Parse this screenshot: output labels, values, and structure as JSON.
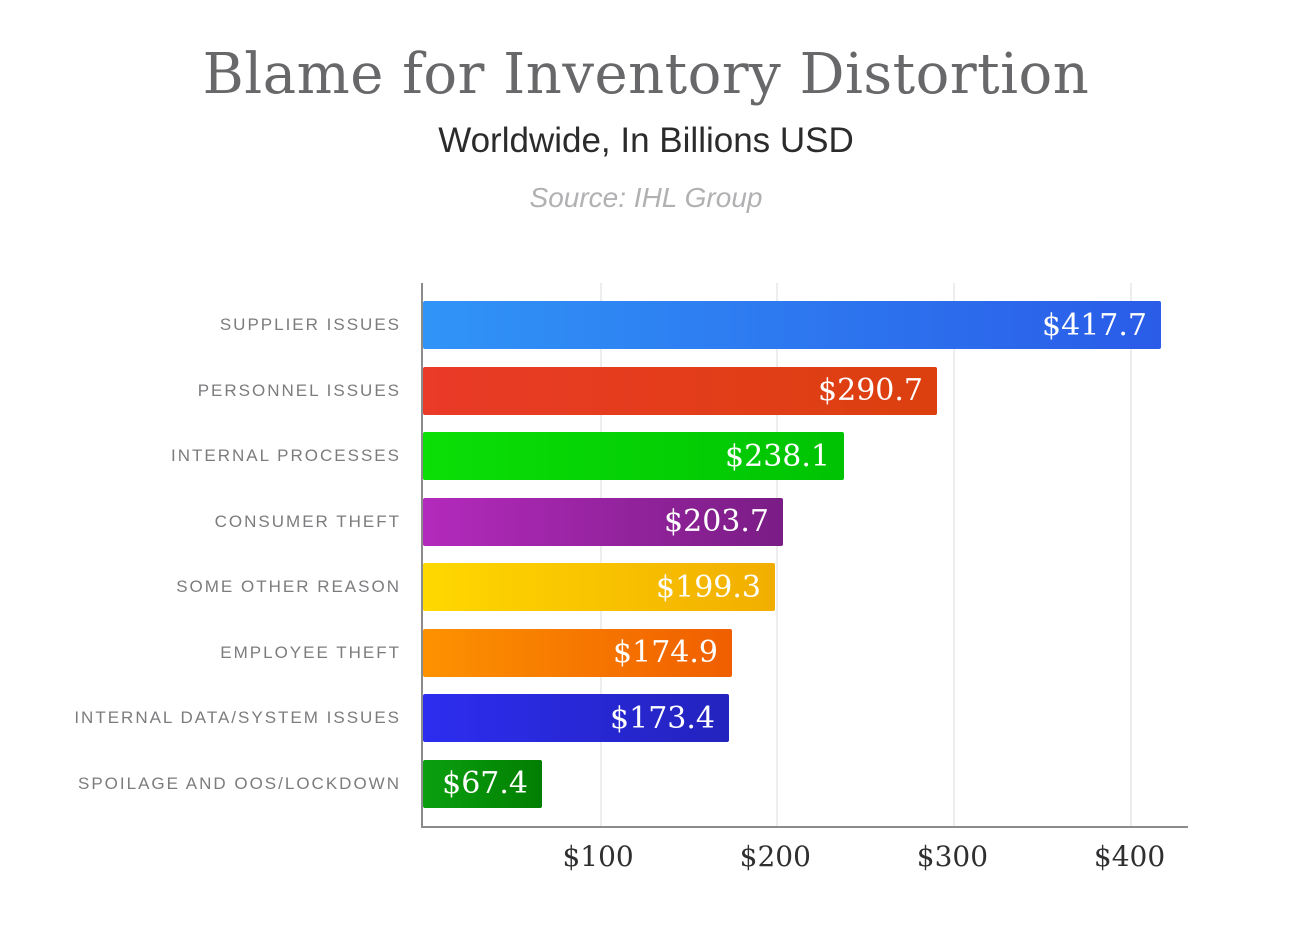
{
  "header": {
    "title": "Blame for Inventory Distortion",
    "subtitle": "Worldwide, In Billions USD",
    "source": "Source: IHL Group"
  },
  "chart_data": {
    "type": "bar",
    "orientation": "horizontal",
    "title": "Blame for Inventory Distortion",
    "subtitle": "Worldwide, In Billions USD",
    "source": "Source: IHL Group",
    "categories": [
      "SUPPLIER ISSUES",
      "PERSONNEL ISSUES",
      "INTERNAL PROCESSES",
      "CONSUMER THEFT",
      "SOME OTHER REASON",
      "EMPLOYEE THEFT",
      "INTERNAL DATA/SYSTEM ISSUES",
      "SPOILAGE AND OOS/LOCKDOWN"
    ],
    "values": [
      417.7,
      290.7,
      238.1,
      203.7,
      199.3,
      174.9,
      173.4,
      67.4
    ],
    "value_labels": [
      "$417.7",
      "$290.7",
      "$238.1",
      "$203.7",
      "$199.3",
      "$174.9",
      "$173.4",
      "$67.4"
    ],
    "bar_gradients": [
      {
        "from": "#3094F7",
        "to": "#2A5CE8"
      },
      {
        "from": "#EA3A28",
        "to": "#DC400E"
      },
      {
        "from": "#0ADF06",
        "to": "#00C303"
      },
      {
        "from": "#B32ABC",
        "to": "#7A1D85"
      },
      {
        "from": "#FFD800",
        "to": "#F2AE00"
      },
      {
        "from": "#FD9200",
        "to": "#F05E00"
      },
      {
        "from": "#2D2DF0",
        "to": "#2323BE"
      },
      {
        "from": "#0AA00F",
        "to": "#027E02"
      }
    ],
    "xlabel": "",
    "ylabel": "",
    "xlim": [
      0,
      433
    ],
    "x_ticks": [
      {
        "value": 100,
        "label": "$100"
      },
      {
        "value": 200,
        "label": "$200"
      },
      {
        "value": 300,
        "label": "$300"
      },
      {
        "value": 400,
        "label": "$400"
      }
    ],
    "grid": "vertical-light",
    "legend": "none",
    "colors": {
      "axis": "#8b8b8b",
      "gridline": "#ededed",
      "title_text": "#68686b",
      "subtitle_text": "#2b2b2b",
      "source_text": "#b1b1b4",
      "category_text": "#7c7c7f",
      "tick_text": "#2f2f31",
      "value_text": "#ffffff",
      "background": "#ffffff"
    }
  }
}
